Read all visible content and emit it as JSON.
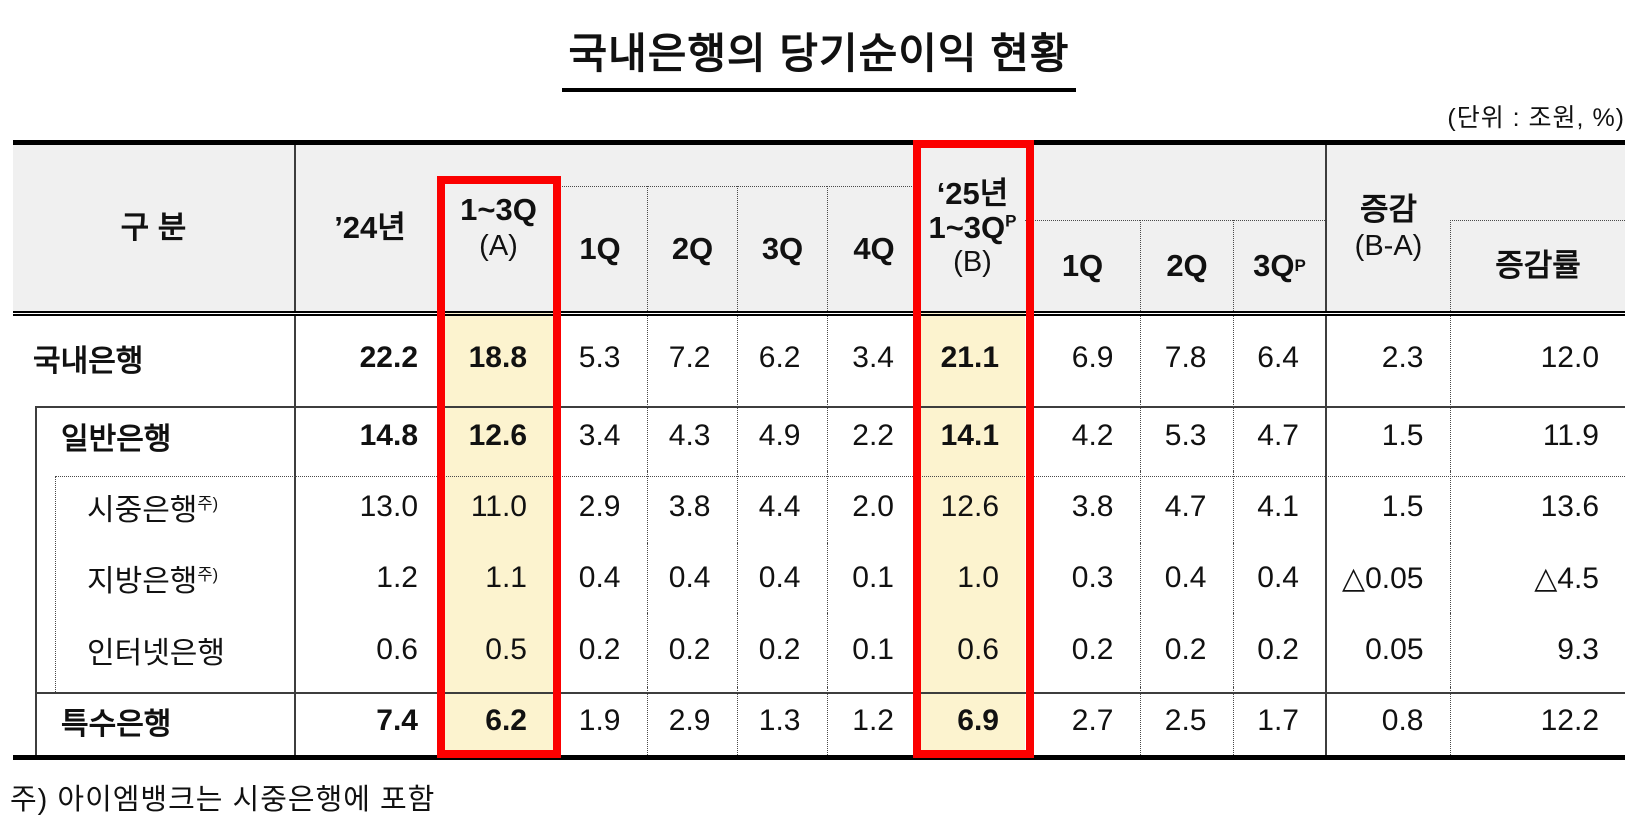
{
  "title": "국내은행의 당기순이익 현황",
  "unit_note": "(단위 : 조원,  %)",
  "footnote": "주) 아이엠뱅크는 시중은행에 포함",
  "colors": {
    "header_gray": "#f0f0f0",
    "highlight_yellow": "#fcf3cf",
    "highlight_box_red": "#fb0000"
  },
  "table": {
    "header": {
      "category": "구  분",
      "y24": "’24년",
      "a1": "1~3Q",
      "a2": "(A)",
      "q24": [
        "1Q",
        "2Q",
        "3Q",
        "4Q"
      ],
      "b1": "‘25년",
      "b2": "1~3Q",
      "b_sup": "P",
      "b3": "(B)",
      "q25": [
        "1Q",
        "2Q",
        "3Q"
      ],
      "q25_sup": "P",
      "diff1": "증감",
      "diff2": "(B-A)",
      "rate": "증감률"
    },
    "rows": [
      {
        "label": "국내은행",
        "sup": "",
        "level": 1,
        "bold": true,
        "values": [
          "22.2",
          "18.8",
          "5.3",
          "7.2",
          "6.2",
          "3.4",
          "21.1",
          "6.9",
          "7.8",
          "6.4",
          "2.3",
          "12.0"
        ]
      },
      {
        "label": "일반은행",
        "sup": "",
        "level": 2,
        "bold": true,
        "values": [
          "14.8",
          "12.6",
          "3.4",
          "4.3",
          "4.9",
          "2.2",
          "14.1",
          "4.2",
          "5.3",
          "4.7",
          "1.5",
          "11.9"
        ]
      },
      {
        "label": "시중은행",
        "sup": "주)",
        "level": 3,
        "bold": false,
        "values": [
          "13.0",
          "11.0",
          "2.9",
          "3.8",
          "4.4",
          "2.0",
          "12.6",
          "3.8",
          "4.7",
          "4.1",
          "1.5",
          "13.6"
        ]
      },
      {
        "label": "지방은행",
        "sup": "주)",
        "level": 3,
        "bold": false,
        "values": [
          "1.2",
          "1.1",
          "0.4",
          "0.4",
          "0.4",
          "0.1",
          "1.0",
          "0.3",
          "0.4",
          "0.4",
          "△0.05",
          "△4.5"
        ]
      },
      {
        "label": "인터넷은행",
        "sup": "",
        "level": 3,
        "bold": false,
        "values": [
          "0.6",
          "0.5",
          "0.2",
          "0.2",
          "0.2",
          "0.1",
          "0.6",
          "0.2",
          "0.2",
          "0.2",
          "0.05",
          "9.3"
        ]
      },
      {
        "label": "특수은행",
        "sup": "",
        "level": 2,
        "bold": true,
        "values": [
          "7.4",
          "6.2",
          "1.9",
          "2.9",
          "1.3",
          "1.2",
          "6.9",
          "2.7",
          "2.5",
          "1.7",
          "0.8",
          "12.2"
        ]
      }
    ]
  }
}
